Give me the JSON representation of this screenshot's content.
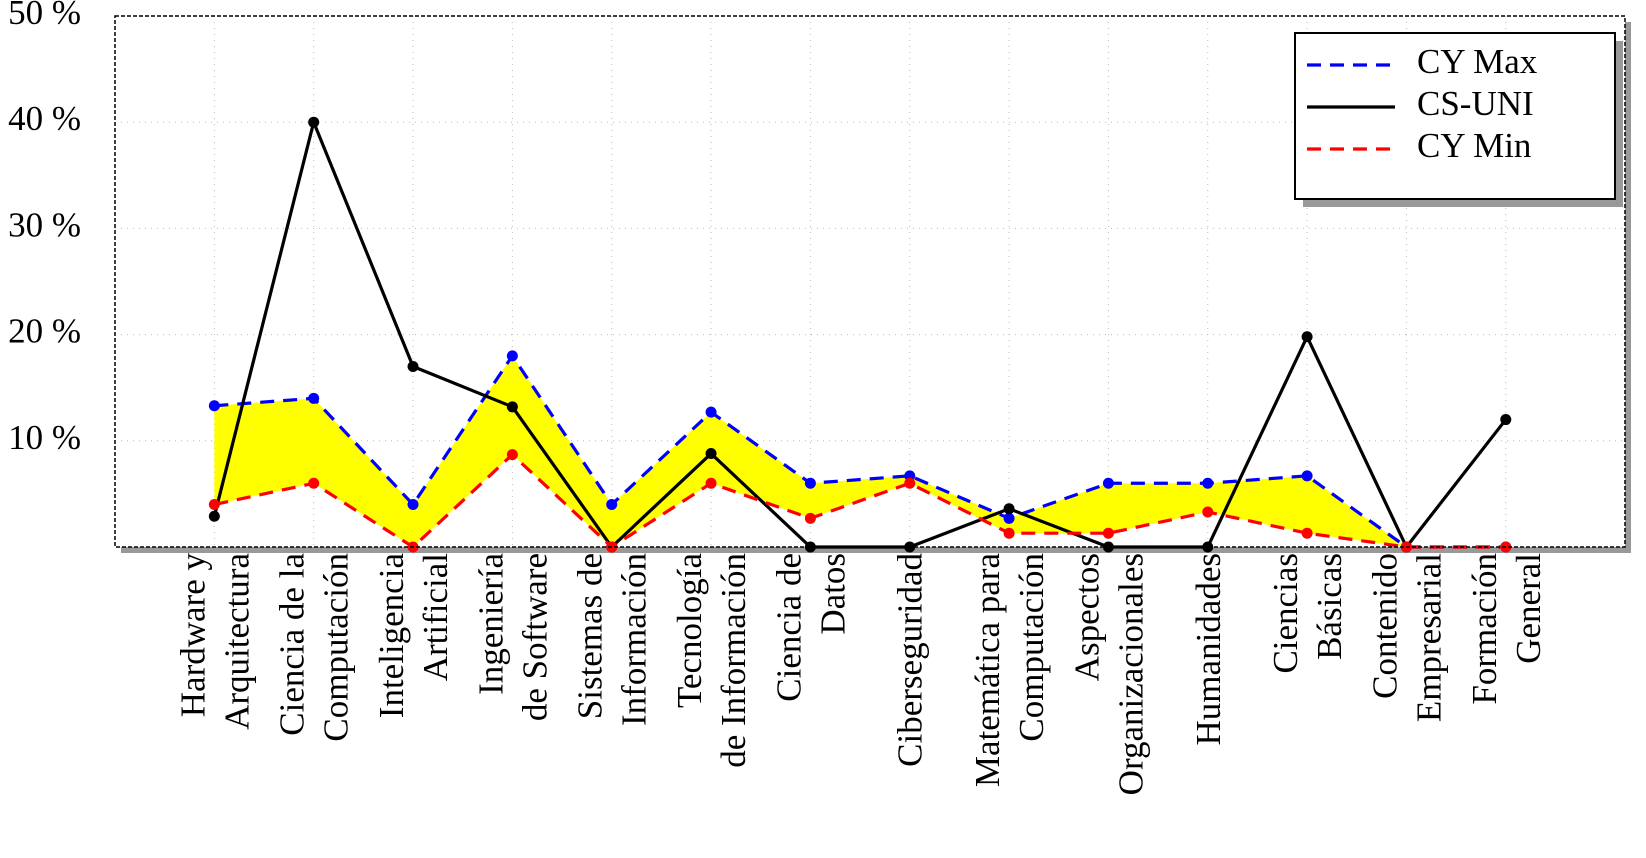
{
  "chart_data": {
    "type": "line",
    "categories": [
      [
        "Hardware y",
        "Arquitectura"
      ],
      [
        "Ciencia de la",
        "Computación"
      ],
      [
        "Inteligencia",
        "Artificial"
      ],
      [
        "Ingeniería",
        "de Software"
      ],
      [
        "Sistemas de",
        "Información"
      ],
      [
        "Tecnología",
        "de Información"
      ],
      [
        "Ciencia de",
        "Datos"
      ],
      [
        "Ciberseguridad"
      ],
      [
        "Matemática para",
        "Computación"
      ],
      [
        "Aspectos",
        "Organizacionales"
      ],
      [
        "Humanidades"
      ],
      [
        "Ciencias",
        "Básicas"
      ],
      [
        "Contenido",
        "Empresarial"
      ],
      [
        "Formación",
        "General"
      ]
    ],
    "series": [
      {
        "name": "CY Max",
        "color": "#0000ff",
        "dashed": true,
        "values": [
          13.3,
          14,
          4,
          18,
          4,
          12.7,
          6,
          6.7,
          2.7,
          6,
          6,
          6.7,
          0,
          0
        ]
      },
      {
        "name": "CS-UNI",
        "color": "#000000",
        "dashed": false,
        "values": [
          2.9,
          40,
          17,
          13.2,
          0,
          8.8,
          0,
          0,
          3.6,
          0,
          0,
          19.8,
          0,
          12
        ]
      },
      {
        "name": "CY Min",
        "color": "#ff0000",
        "dashed": true,
        "values": [
          4,
          6,
          0,
          8.7,
          0,
          6,
          2.7,
          6,
          1.3,
          1.3,
          3.3,
          1.3,
          0,
          0
        ]
      }
    ],
    "fill_between": {
      "series": [
        0,
        2
      ],
      "color": "#ffff00"
    },
    "ylim": [
      0,
      50
    ],
    "yticks": [
      {
        "value": 10,
        "label": "10 %"
      },
      {
        "value": 20,
        "label": "20 %"
      },
      {
        "value": 30,
        "label": "30 %"
      },
      {
        "value": 40,
        "label": "40 %"
      },
      {
        "value": 50,
        "label": "50 %"
      }
    ],
    "grid": true,
    "legend": "upper right"
  }
}
